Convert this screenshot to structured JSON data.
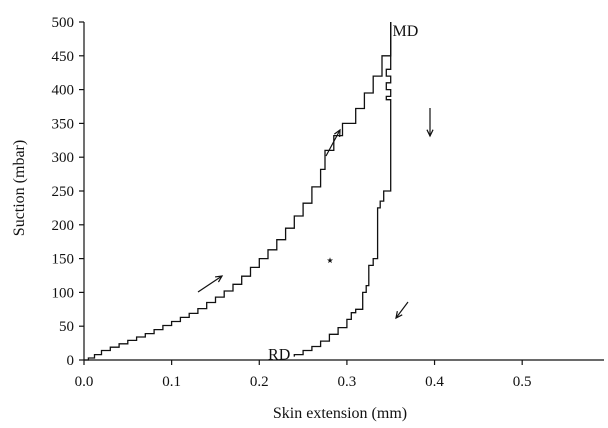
{
  "chart_data": {
    "type": "line",
    "title": "",
    "xlabel": "Skin extension (mm)",
    "ylabel": "Suction (mbar)",
    "xlim": [
      0,
      0.55
    ],
    "ylim": [
      0,
      500
    ],
    "xticks": [
      "0.0",
      "0.1",
      "0.2",
      "0.3",
      "0.4",
      "0.5"
    ],
    "yticks": [
      "0",
      "50",
      "100",
      "150",
      "200",
      "250",
      "300",
      "350",
      "400",
      "450",
      "500"
    ],
    "grid": false,
    "series": [
      {
        "values": [
          [
            0.0,
            0
          ],
          [
            0.005,
            3
          ],
          [
            0.012,
            8
          ],
          [
            0.02,
            14
          ],
          [
            0.03,
            19
          ],
          [
            0.04,
            24
          ],
          [
            0.05,
            29
          ],
          [
            0.06,
            34
          ],
          [
            0.07,
            39
          ],
          [
            0.08,
            45
          ],
          [
            0.09,
            51
          ],
          [
            0.1,
            57
          ],
          [
            0.11,
            63
          ],
          [
            0.12,
            69
          ],
          [
            0.13,
            76
          ],
          [
            0.14,
            85
          ],
          [
            0.15,
            93
          ],
          [
            0.16,
            102
          ],
          [
            0.17,
            112
          ],
          [
            0.18,
            124
          ],
          [
            0.19,
            137
          ],
          [
            0.2,
            150
          ],
          [
            0.21,
            163
          ],
          [
            0.22,
            178
          ],
          [
            0.23,
            195
          ],
          [
            0.24,
            213
          ],
          [
            0.25,
            232
          ],
          [
            0.26,
            256
          ],
          [
            0.27,
            282
          ],
          [
            0.275,
            310
          ],
          [
            0.285,
            332
          ],
          [
            0.295,
            350
          ],
          [
            0.31,
            372
          ],
          [
            0.32,
            395
          ],
          [
            0.33,
            420
          ],
          [
            0.34,
            450
          ],
          [
            0.35,
            478
          ],
          [
            0.35,
            500
          ]
        ]
      },
      {
        "values": [
          [
            0.35,
            500
          ],
          [
            0.35,
            435
          ],
          [
            0.345,
            430
          ],
          [
            0.35,
            420
          ],
          [
            0.345,
            410
          ],
          [
            0.35,
            400
          ],
          [
            0.345,
            390
          ],
          [
            0.35,
            385
          ],
          [
            0.35,
            305
          ],
          [
            0.342,
            250
          ],
          [
            0.338,
            235
          ],
          [
            0.335,
            225
          ],
          [
            0.33,
            150
          ],
          [
            0.325,
            140
          ],
          [
            0.322,
            110
          ],
          [
            0.318,
            100
          ],
          [
            0.31,
            75
          ],
          [
            0.305,
            70
          ],
          [
            0.3,
            60
          ],
          [
            0.29,
            48
          ],
          [
            0.28,
            38
          ],
          [
            0.27,
            28
          ],
          [
            0.26,
            20
          ],
          [
            0.25,
            14
          ],
          [
            0.24,
            8
          ],
          [
            0.24,
            5
          ]
        ]
      }
    ],
    "annotations": [
      {
        "text": "MD",
        "x": 0.352,
        "y": 487
      },
      {
        "text": "RD",
        "x": 0.21,
        "y": 8
      },
      {
        "text": "⋆",
        "x": 0.275,
        "y": 147
      }
    ]
  }
}
